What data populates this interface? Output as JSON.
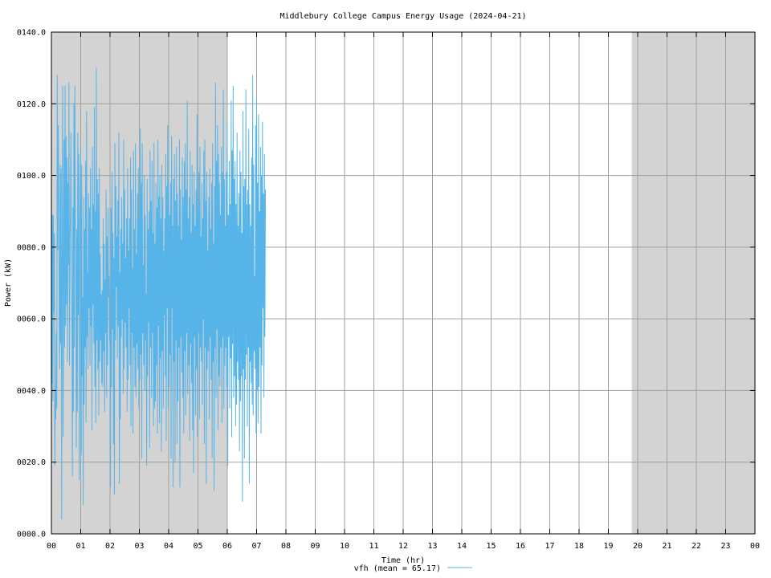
{
  "chart_data": {
    "type": "line",
    "title": "Middlebury College Campus Energy Usage (2024-04-21)",
    "xlabel": "Time (hr)",
    "ylabel": "Power (kW)",
    "xlim": [
      0,
      24
    ],
    "ylim": [
      0,
      140
    ],
    "x_tick_labels": [
      "00",
      "01",
      "02",
      "03",
      "04",
      "05",
      "06",
      "07",
      "08",
      "09",
      "10",
      "11",
      "12",
      "13",
      "14",
      "15",
      "16",
      "17",
      "18",
      "19",
      "20",
      "21",
      "22",
      "23",
      "00"
    ],
    "y_ticks": [
      0,
      20,
      40,
      60,
      80,
      100,
      120,
      140
    ],
    "y_tick_labels": [
      "0000.0",
      "0020.0",
      "0040.0",
      "0060.0",
      "0080.0",
      "0100.0",
      "0120.0",
      "0140.0"
    ],
    "grid": true,
    "shaded_ranges": [
      [
        0,
        6
      ],
      [
        19.8,
        24
      ]
    ],
    "shade_color": "#d3d3d3",
    "legend": {
      "position": "bottom-center",
      "label": "vfh (mean = 65.17)"
    },
    "series": [
      {
        "name": "vfh (mean = 65.17)",
        "color": "#56b4e9",
        "samples_per_hour": 60,
        "mean": 65.17,
        "values": [
          97,
          42,
          89,
          37,
          89,
          62,
          84,
          19,
          40,
          32,
          56,
          35,
          128,
          79,
          114,
          96,
          59,
          46,
          103,
          53,
          102,
          4,
          74,
          125,
          27,
          69,
          110,
          52,
          125,
          58,
          111,
          64,
          105,
          48,
          98,
          75,
          126,
          47,
          82,
          89,
          112,
          74,
          64,
          16,
          91,
          34,
          120,
          52,
          125,
          85,
          77,
          24,
          85,
          34,
          112,
          61,
          106,
          15,
          82,
          93,
          108,
          22,
          103,
          44,
          66,
          8,
          94,
          36,
          85,
          52,
          104,
          31,
          118,
          55,
          73,
          46,
          95,
          63,
          91,
          47,
          102,
          58,
          85,
          29,
          108,
          64,
          92,
          53,
          119,
          41,
          90,
          31,
          130,
          54,
          99,
          46,
          95,
          33,
          102,
          48,
          78,
          54,
          67,
          42,
          68,
          41,
          88,
          51,
          81,
          34,
          71,
          56,
          96,
          38,
          83,
          47,
          91,
          66,
          72,
          55,
          52,
          13,
          91,
          41,
          101,
          57,
          84,
          25,
          77,
          11,
          109,
          54,
          97,
          69,
          83,
          49,
          93,
          58,
          112,
          14,
          73,
          32,
          85,
          55,
          94,
          60,
          81,
          39,
          110,
          46,
          96,
          59,
          77,
          52,
          88,
          34,
          102,
          43,
          79,
          63,
          88,
          47,
          105,
          30,
          96,
          56,
          74,
          28,
          107,
          52,
          85,
          41,
          109,
          38,
          78,
          53,
          95,
          46,
          102,
          35,
          88,
          43,
          113,
          50,
          98,
          21,
          109,
          56,
          75,
          47,
          100,
          40,
          89,
          54,
          67,
          19,
          99,
          44,
          85,
          59,
          90,
          24,
          107,
          52,
          93,
          38,
          104,
          56,
          84,
          30,
          109,
          35,
          81,
          37,
          98,
          47,
          91,
          28,
          110,
          58,
          94,
          31,
          100,
          49,
          88,
          23,
          103,
          51,
          94,
          35,
          79,
          61,
          88,
          44,
          106,
          26,
          97,
          63,
          114,
          35,
          98,
          41,
          89,
          50,
          98,
          21,
          111,
          63,
          86,
          13,
          99,
          48,
          106,
          20,
          93,
          54,
          108,
          25,
          95,
          37,
          86,
          52,
          110,
          13,
          96,
          55,
          82,
          45,
          105,
          38,
          94,
          28,
          104,
          51,
          109,
          33,
          96,
          56,
          121,
          39,
          88,
          47,
          94,
          26,
          107,
          53,
          84,
          42,
          103,
          29,
          92,
          17,
          101,
          55,
          86,
          33,
          96,
          46,
          117,
          27,
          91,
          56,
          101,
          32,
          108,
          52,
          83,
          48,
          98,
          36,
          88,
          60,
          107,
          25,
          110,
          52,
          93,
          14,
          101,
          46,
          79,
          51,
          94,
          32,
          102,
          55,
          85,
          43,
          98,
          21,
          109,
          48,
          81,
          12,
          97,
          52,
          126,
          38,
          104,
          57,
          114,
          29,
          106,
          44,
          98,
          41,
          89,
          52,
          108,
          31,
          101,
          55,
          124,
          35,
          99,
          47,
          86,
          52,
          101,
          41,
          115,
          19,
          89,
          55,
          104,
          35,
          92,
          49,
          121,
          27,
          107,
          53,
          125,
          38,
          99,
          44,
          104,
          30,
          92,
          36,
          112,
          48,
          86,
          43,
          95,
          23,
          107,
          37,
          101,
          44,
          84,
          9,
          118,
          46,
          97,
          21,
          99,
          43,
          124,
          50,
          92,
          30,
          96,
          52,
          113,
          14,
          92,
          48,
          86,
          42,
          105,
          36,
          128,
          33,
          103,
          51,
          72,
          46,
          114,
          28,
          122,
          40,
          98,
          31,
          117,
          41,
          90,
          52,
          108,
          28,
          100,
          47,
          115,
          63,
          95,
          38,
          106,
          55,
          96
        ]
      }
    ]
  }
}
